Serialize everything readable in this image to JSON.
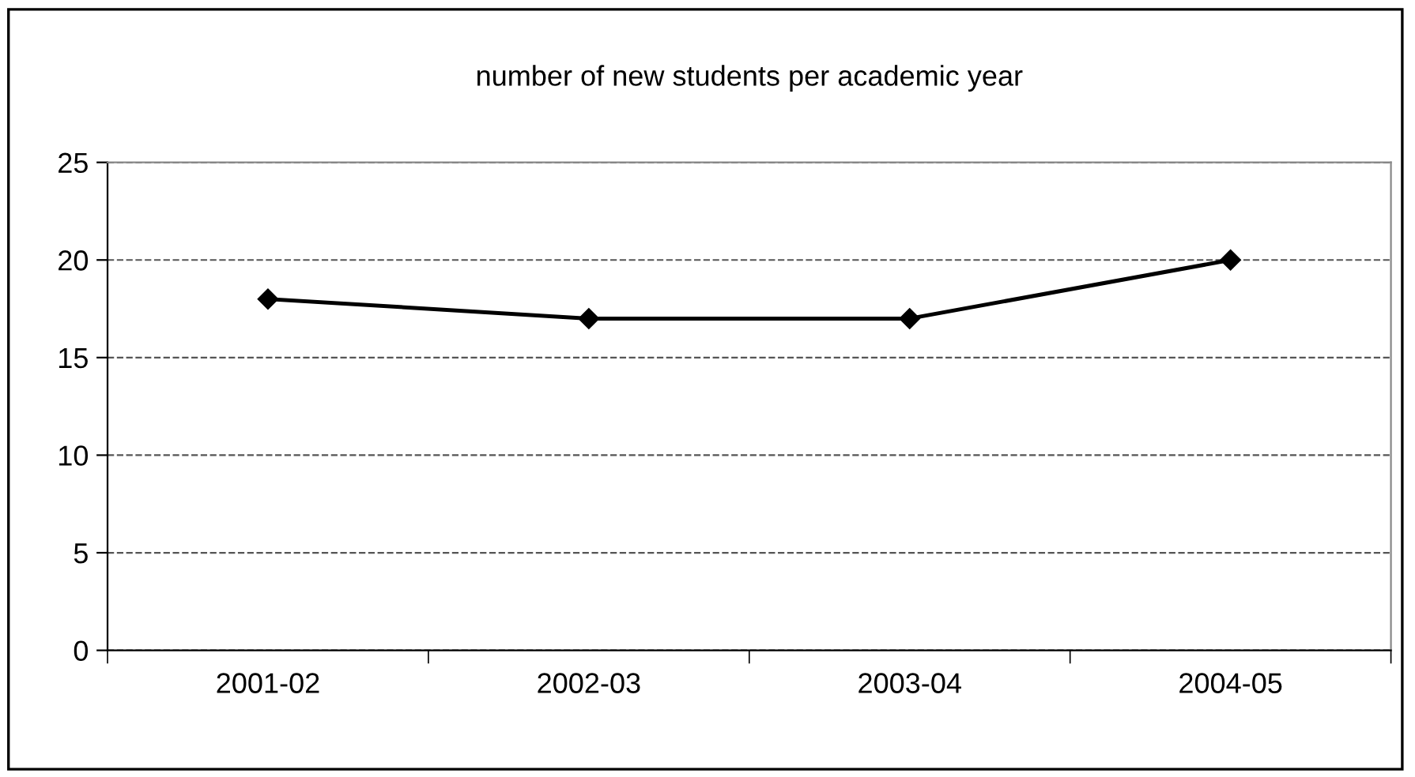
{
  "chart_data": {
    "type": "line",
    "title": "number of new students per academic year",
    "categories": [
      "2001-02",
      "2002-03",
      "2003-04",
      "2004-05"
    ],
    "series": [
      {
        "color": "#000000",
        "values": [
          18,
          17,
          17,
          20
        ]
      }
    ],
    "ylim": [
      0,
      25
    ],
    "yticks": [
      0,
      5,
      10,
      15,
      20,
      25
    ],
    "grid": "y",
    "marker": "diamond",
    "line_style": "solid"
  }
}
